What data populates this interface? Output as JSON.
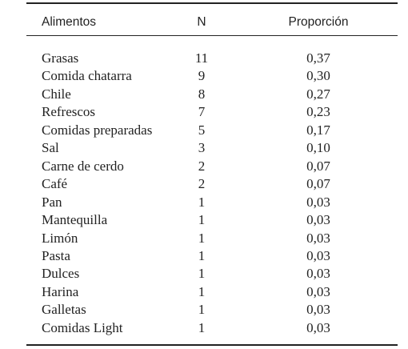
{
  "table": {
    "header": [
      "Alimentos",
      "N",
      "Proporción"
    ],
    "rows": [
      [
        "Grasas",
        11,
        "0,37"
      ],
      [
        "Comida chatarra",
        9,
        "0,30"
      ],
      [
        "Chile",
        8,
        "0,27"
      ],
      [
        "Refrescos",
        7,
        "0,23"
      ],
      [
        "Comidas preparadas",
        5,
        "0,17"
      ],
      [
        "Sal",
        3,
        "0,10"
      ],
      [
        "Carne de cerdo",
        2,
        "0,07"
      ],
      [
        "Café",
        2,
        "0,07"
      ],
      [
        "Pan",
        1,
        "0,03"
      ],
      [
        "Mantequilla",
        1,
        "0,03"
      ],
      [
        "Limón",
        1,
        "0,03"
      ],
      [
        "Pasta",
        1,
        "0,03"
      ],
      [
        "Dulces",
        1,
        "0,03"
      ],
      [
        "Harina",
        1,
        "0,03"
      ],
      [
        "Galletas",
        1,
        "0,03"
      ],
      [
        "Comidas Light",
        1,
        "0,03"
      ]
    ]
  }
}
